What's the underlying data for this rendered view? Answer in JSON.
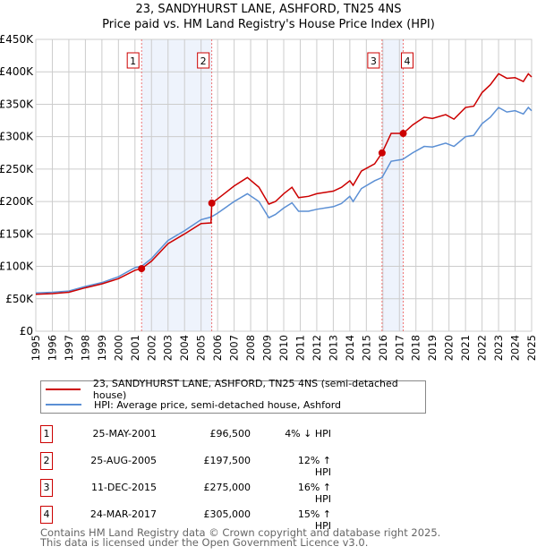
{
  "chart_data": {
    "type": "line",
    "title": "23, SANDYHURST LANE, ASHFORD, TN25 4NS",
    "subtitle": "Price paid vs. HM Land Registry's House Price Index (HPI)",
    "xlim": [
      1995,
      2025
    ],
    "ylim": [
      0,
      450000
    ],
    "yticks": [
      "£0",
      "£50K",
      "£100K",
      "£150K",
      "£200K",
      "£250K",
      "£300K",
      "£350K",
      "£400K",
      "£450K"
    ],
    "xticks": [
      "1995",
      "1996",
      "1997",
      "1998",
      "1999",
      "2000",
      "2001",
      "2002",
      "2003",
      "2004",
      "2005",
      "2006",
      "2007",
      "2008",
      "2009",
      "2010",
      "2011",
      "2012",
      "2013",
      "2014",
      "2015",
      "2016",
      "2017",
      "2018",
      "2019",
      "2020",
      "2021",
      "2022",
      "2023",
      "2024",
      "2025"
    ],
    "grid": true,
    "series": [
      {
        "name": "23, SANDYHURST LANE, ASHFORD, TN25 4NS (semi-detached house)",
        "color": "#cc0000",
        "x": [
          1995,
          1996,
          1997,
          1998,
          1999,
          2000,
          2001,
          2001.4,
          2002,
          2003,
          2004,
          2005,
          2005.6,
          2005.65,
          2006,
          2007,
          2007.8,
          2008.5,
          2009.1,
          2009.5,
          2010,
          2010.5,
          2010.9,
          2011.5,
          2012,
          2013,
          2013.5,
          2014,
          2014.2,
          2014.7,
          2015.5,
          2015.95,
          2016.5,
          2017.23,
          2017.8,
          2018.5,
          2019,
          2019.8,
          2020.3,
          2021,
          2021.5,
          2022,
          2022.5,
          2023,
          2023.5,
          2024,
          2024.5,
          2024.8,
          2025
        ],
        "y": [
          57,
          58,
          60,
          67,
          73,
          81,
          94,
          96.5,
          108,
          135,
          150,
          166,
          167,
          197.5,
          204,
          224,
          237,
          222,
          196,
          200,
          212,
          222,
          206,
          208,
          212,
          216,
          222,
          232,
          225,
          247,
          258,
          275,
          305,
          305,
          318,
          330,
          328,
          334,
          327,
          345,
          347,
          368,
          380,
          397,
          390,
          391,
          385,
          397,
          392
        ]
      },
      {
        "name": "HPI: Average price, semi-detached house, Ashford",
        "color": "#5b8fd4",
        "x": [
          1995,
          1996,
          1997,
          1998,
          1999,
          2000,
          2001,
          2001.4,
          2002,
          2003,
          2004,
          2005,
          2005.6,
          2006,
          2007,
          2007.8,
          2008.5,
          2009.1,
          2009.5,
          2010,
          2010.5,
          2010.9,
          2011.5,
          2012,
          2013,
          2013.5,
          2014,
          2014.2,
          2014.7,
          2015.5,
          2015.95,
          2016.5,
          2017.2,
          2017.8,
          2018.5,
          2019,
          2019.8,
          2020.3,
          2021,
          2021.5,
          2022,
          2022.5,
          2023,
          2023.5,
          2024,
          2024.5,
          2024.8,
          2025
        ],
        "y": [
          59,
          60,
          62,
          69,
          75,
          84,
          98,
          100,
          112,
          140,
          155,
          172,
          176,
          182,
          200,
          212,
          200,
          175,
          180,
          190,
          198,
          185,
          185,
          188,
          192,
          197,
          208,
          200,
          220,
          232,
          237,
          262,
          265,
          275,
          285,
          284,
          290,
          285,
          300,
          302,
          320,
          330,
          345,
          338,
          340,
          335,
          345,
          340
        ]
      }
    ],
    "y_unit": "thousand GBP",
    "sales": [
      {
        "n": "1",
        "x": 2001.4,
        "y": 96.5
      },
      {
        "n": "2",
        "x": 2005.65,
        "y": 197.5
      },
      {
        "n": "3",
        "x": 2015.95,
        "y": 275
      },
      {
        "n": "4",
        "x": 2017.23,
        "y": 305
      }
    ],
    "shaded_ranges": [
      [
        2001.4,
        2005.65
      ],
      [
        2015.95,
        2017.23
      ]
    ]
  },
  "legend": [
    "23, SANDYHURST LANE, ASHFORD, TN25 4NS (semi-detached house)",
    "HPI: Average price, semi-detached house, Ashford"
  ],
  "transactions": [
    {
      "n": "1",
      "date": "25-MAY-2001",
      "price": "£96,500",
      "hpi": "4% ↓ HPI"
    },
    {
      "n": "2",
      "date": "25-AUG-2005",
      "price": "£197,500",
      "hpi": "12% ↑ HPI"
    },
    {
      "n": "3",
      "date": "11-DEC-2015",
      "price": "£275,000",
      "hpi": "16% ↑ HPI"
    },
    {
      "n": "4",
      "date": "24-MAR-2017",
      "price": "£305,000",
      "hpi": "15% ↑ HPI"
    }
  ],
  "footer": [
    "Contains HM Land Registry data © Crown copyright and database right 2025.",
    "This data is licensed under the Open Government Licence v3.0."
  ]
}
